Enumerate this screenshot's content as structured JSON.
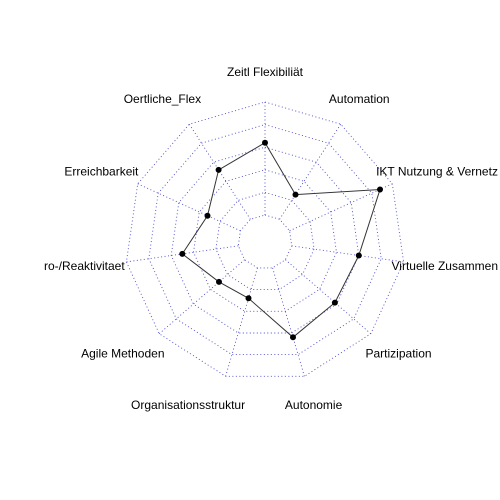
{
  "chart_data": {
    "type": "radar",
    "title": "",
    "axes": [
      "Zeitl Flexibiliät",
      "Automation",
      "IKT Nutzung & Vernetz",
      "Virtuelle Zusammen",
      "Partizipation",
      "Autonomie",
      "Organisationsstruktur",
      "Agile Methoden",
      "ro-/Reaktivitaet",
      "Erreichbarkeit",
      "Oertliche_Flex"
    ],
    "range": [
      0,
      5
    ],
    "grid_levels": [
      1,
      2,
      3,
      4,
      5
    ],
    "series": [
      {
        "values": [
          3.2,
          1.3,
          4.4,
          3.0,
          2.9,
          3.2,
          1.4,
          1.5,
          2.5,
          1.6,
          2.6
        ]
      }
    ],
    "grid": true,
    "colors": {
      "grid": "#4a4ad0",
      "series": "#333333",
      "points": "#000000"
    }
  }
}
